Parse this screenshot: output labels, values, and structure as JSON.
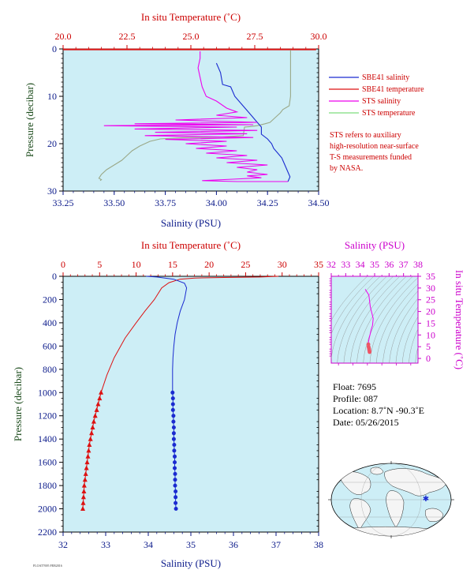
{
  "colors": {
    "bg": "#cdeef6",
    "temp": "#dd1111",
    "sal": "#1a2ad0",
    "sts_sal": "#ee00ee",
    "sts_temp": "#9aa888",
    "axis_red": "#cc0000",
    "axis_blue": "#0b1a8a",
    "axis_mag": "#cc00cc",
    "axis_green": "#1a4a1a",
    "land": "#f5f5f5",
    "ocean": "#cdeef6"
  },
  "chart_data": [
    {
      "type": "line",
      "id": "near-surface",
      "x_temp_label": "In situ Temperature (˚C)",
      "x_sal_label": "Salinity (PSU)",
      "ylabel": "Pressure (decibar)",
      "temp_lim": [
        20,
        30
      ],
      "sal_lim": [
        33.25,
        34.5
      ],
      "ylim": [
        30,
        0
      ],
      "temp_ticks": [
        "20.0",
        "22.5",
        "25.0",
        "27.5",
        "30.0"
      ],
      "sal_ticks": [
        "33.25",
        "33.50",
        "33.75",
        "34.00",
        "34.25",
        "34.50"
      ],
      "y_ticks": [
        "0",
        "10",
        "20",
        "30"
      ],
      "legend": [
        {
          "label": "SBE41 salinity",
          "color": "#1a2ad0"
        },
        {
          "label": "SBE41 temperature",
          "color": "#dd1111"
        },
        {
          "label": "STS salinity",
          "color": "#ee00ee"
        },
        {
          "label": "STS temperature",
          "color": "#7ddd7d"
        }
      ],
      "note": [
        "STS refers to auxiliary",
        "high-resolution near-surface",
        "T-S measurements funded",
        "by NASA."
      ],
      "series": [
        {
          "name": "SBE41 temperature",
          "axis": "temp",
          "points": [
            [
              29.9,
              0.1
            ],
            [
              20.0,
              0.1
            ]
          ]
        },
        {
          "name": "STS temperature",
          "axis": "temp",
          "points": [
            [
              28.9,
              0.2
            ],
            [
              28.9,
              2
            ],
            [
              28.9,
              6
            ],
            [
              28.9,
              10
            ],
            [
              28.85,
              12
            ],
            [
              28.6,
              12.8
            ],
            [
              28.5,
              13.5
            ],
            [
              28.3,
              14.5
            ],
            [
              28.1,
              15.5
            ],
            [
              27.9,
              15.8
            ],
            [
              27.6,
              16.2
            ],
            [
              27.3,
              16.4
            ],
            [
              27.1,
              16.5
            ],
            [
              27.05,
              18.3
            ],
            [
              26.2,
              18.6
            ],
            [
              25.5,
              18.7
            ],
            [
              24.9,
              18.7
            ],
            [
              24.4,
              18.8
            ],
            [
              23.8,
              19.0
            ],
            [
              23.4,
              19.5
            ],
            [
              23.2,
              20.0
            ],
            [
              23.0,
              20.5
            ],
            [
              22.7,
              21.5
            ],
            [
              22.5,
              22.5
            ],
            [
              22.3,
              23.5
            ],
            [
              22.0,
              24.5
            ],
            [
              21.7,
              25.5
            ],
            [
              21.5,
              26.5
            ],
            [
              21.4,
              27.3
            ],
            [
              21.5,
              27.6
            ],
            [
              21.45,
              27.8
            ]
          ]
        },
        {
          "name": "SBE41 salinity",
          "axis": "sal",
          "points": [
            [
              34.0,
              3
            ],
            [
              34.02,
              5
            ],
            [
              34.03,
              7.5
            ],
            [
              34.07,
              8
            ],
            [
              34.09,
              10
            ],
            [
              34.12,
              11.5
            ],
            [
              34.15,
              13
            ],
            [
              34.17,
              14
            ],
            [
              34.19,
              15
            ],
            [
              34.2,
              15.5
            ],
            [
              34.21,
              16
            ],
            [
              34.22,
              16.5
            ],
            [
              34.22,
              18
            ],
            [
              34.25,
              19
            ],
            [
              34.27,
              20
            ],
            [
              34.28,
              21
            ],
            [
              34.3,
              22
            ],
            [
              34.32,
              23
            ],
            [
              34.33,
              24
            ],
            [
              34.34,
              25
            ],
            [
              34.35,
              26
            ],
            [
              34.36,
              27
            ],
            [
              34.35,
              28
            ]
          ]
        },
        {
          "name": "STS salinity",
          "axis": "sal",
          "points": [
            [
              33.92,
              0.5
            ],
            [
              33.92,
              2
            ],
            [
              33.91,
              4
            ],
            [
              33.92,
              6
            ],
            [
              33.93,
              8
            ],
            [
              33.95,
              10
            ],
            [
              34.0,
              11
            ],
            [
              34.05,
              12.5
            ],
            [
              34.1,
              13.3
            ],
            [
              34.0,
              14
            ],
            [
              34.15,
              14.5
            ],
            [
              33.8,
              15
            ],
            [
              34.2,
              15.5
            ],
            [
              33.6,
              15.8
            ],
            [
              34.18,
              16
            ],
            [
              33.45,
              16.2
            ],
            [
              34.1,
              16.5
            ],
            [
              33.6,
              16.9
            ],
            [
              34.2,
              17.2
            ],
            [
              33.7,
              17.6
            ],
            [
              34.15,
              17.9
            ],
            [
              33.65,
              18.3
            ],
            [
              34.18,
              18.7
            ],
            [
              33.75,
              19.1
            ],
            [
              34.05,
              19.5
            ],
            [
              33.85,
              20.0
            ],
            [
              34.05,
              20.5
            ],
            [
              33.9,
              21.0
            ],
            [
              34.1,
              21.5
            ],
            [
              33.95,
              22.0
            ],
            [
              34.15,
              22.5
            ],
            [
              34.0,
              23.0
            ],
            [
              34.2,
              23.5
            ],
            [
              34.05,
              24.0
            ],
            [
              34.25,
              24.5
            ],
            [
              34.1,
              25.0
            ],
            [
              34.2,
              25.5
            ],
            [
              34.15,
              26.0
            ],
            [
              34.25,
              26.5
            ],
            [
              34.15,
              26.8
            ],
            [
              34.22,
              27.2
            ],
            [
              34.08,
              27.5
            ],
            [
              33.93,
              27.8
            ],
            [
              34.1,
              28.0
            ],
            [
              34.35,
              28.0
            ]
          ]
        }
      ]
    },
    {
      "type": "line",
      "id": "full-depth",
      "x_temp_label": "In situ Temperature (˚C)",
      "x_sal_label": "Salinity (PSU)",
      "ylabel": "Pressure (decibar)",
      "temp_lim": [
        0,
        35
      ],
      "sal_lim": [
        32,
        38
      ],
      "ylim": [
        2200,
        0
      ],
      "temp_ticks": [
        "0",
        "5",
        "10",
        "15",
        "20",
        "25",
        "30",
        "35"
      ],
      "sal_ticks": [
        "32",
        "33",
        "34",
        "35",
        "36",
        "37",
        "38"
      ],
      "y_ticks": [
        "0",
        "200",
        "400",
        "600",
        "800",
        "1000",
        "1200",
        "1400",
        "1600",
        "1800",
        "2000",
        "2200"
      ],
      "series": [
        {
          "name": "Temperature",
          "axis": "temp",
          "points": [
            [
              29.5,
              0
            ],
            [
              27,
              6
            ],
            [
              22,
              10
            ],
            [
              18,
              15
            ],
            [
              16,
              25
            ],
            [
              14.5,
              55
            ],
            [
              13.5,
              100
            ],
            [
              12.5,
              200
            ],
            [
              11.2,
              300
            ],
            [
              10.0,
              400
            ],
            [
              8.5,
              530
            ],
            [
              7.0,
              700
            ],
            [
              6.0,
              850
            ],
            [
              5.2,
              1000
            ],
            [
              5.0,
              1050
            ],
            [
              4.8,
              1100
            ],
            [
              4.6,
              1150
            ],
            [
              4.4,
              1200
            ],
            [
              4.2,
              1250
            ],
            [
              4.05,
              1300
            ],
            [
              3.9,
              1350
            ],
            [
              3.75,
              1400
            ],
            [
              3.6,
              1450
            ],
            [
              3.5,
              1500
            ],
            [
              3.4,
              1550
            ],
            [
              3.3,
              1600
            ],
            [
              3.2,
              1650
            ],
            [
              3.1,
              1700
            ],
            [
              3.0,
              1750
            ],
            [
              2.9,
              1800
            ],
            [
              2.85,
              1850
            ],
            [
              2.8,
              1900
            ],
            [
              2.75,
              1950
            ],
            [
              2.7,
              2000
            ]
          ],
          "marker_start_p": 1000
        },
        {
          "name": "Salinity",
          "axis": "sal",
          "points": [
            [
              33.95,
              0
            ],
            [
              34.2,
              6
            ],
            [
              34.6,
              25
            ],
            [
              34.85,
              60
            ],
            [
              34.9,
              100
            ],
            [
              34.85,
              200
            ],
            [
              34.75,
              300
            ],
            [
              34.68,
              400
            ],
            [
              34.63,
              500
            ],
            [
              34.6,
              600
            ],
            [
              34.58,
              700
            ],
            [
              34.57,
              800
            ],
            [
              34.57,
              900
            ],
            [
              34.57,
              1000
            ],
            [
              34.58,
              1050
            ],
            [
              34.58,
              1100
            ],
            [
              34.58,
              1150
            ],
            [
              34.59,
              1200
            ],
            [
              34.59,
              1250
            ],
            [
              34.6,
              1300
            ],
            [
              34.6,
              1350
            ],
            [
              34.6,
              1400
            ],
            [
              34.61,
              1450
            ],
            [
              34.61,
              1500
            ],
            [
              34.62,
              1550
            ],
            [
              34.62,
              1600
            ],
            [
              34.62,
              1650
            ],
            [
              34.63,
              1700
            ],
            [
              34.63,
              1750
            ],
            [
              34.63,
              1800
            ],
            [
              34.64,
              1850
            ],
            [
              34.64,
              1900
            ],
            [
              34.64,
              1950
            ],
            [
              34.65,
              2000
            ]
          ],
          "marker_start_p": 1000
        }
      ]
    },
    {
      "type": "scatter",
      "id": "ts-diagram",
      "xlabel": "Salinity (PSU)",
      "ylabel": "In situ Temperature (˚C)",
      "xlim": [
        32,
        38
      ],
      "ylim": [
        -2,
        35
      ],
      "x_ticks": [
        "32",
        "33",
        "34",
        "35",
        "36",
        "37",
        "38"
      ],
      "y_ticks": [
        "0",
        "5",
        "10",
        "15",
        "20",
        "25",
        "30",
        "35"
      ],
      "series": [
        {
          "name": "T-S",
          "points": [
            [
              34.35,
              29.5
            ],
            [
              34.6,
              27
            ],
            [
              34.7,
              22
            ],
            [
              34.9,
              17
            ],
            [
              34.85,
              14
            ],
            [
              34.75,
              12
            ],
            [
              34.68,
              10
            ],
            [
              34.62,
              8.5
            ],
            [
              34.58,
              7
            ],
            [
              34.57,
              6
            ],
            [
              34.58,
              5
            ],
            [
              34.6,
              4.5
            ],
            [
              34.62,
              4
            ],
            [
              34.63,
              3.5
            ],
            [
              34.65,
              3
            ],
            [
              34.65,
              2.7
            ]
          ]
        }
      ]
    }
  ],
  "info": {
    "float": "Float:  7695",
    "profile": "Profile:  087",
    "location": "Location:  8.7˚N  -90.3˚E",
    "date": "Date:  05/26/2015"
  },
  "footer": "FLOAT7695 FEB2016"
}
